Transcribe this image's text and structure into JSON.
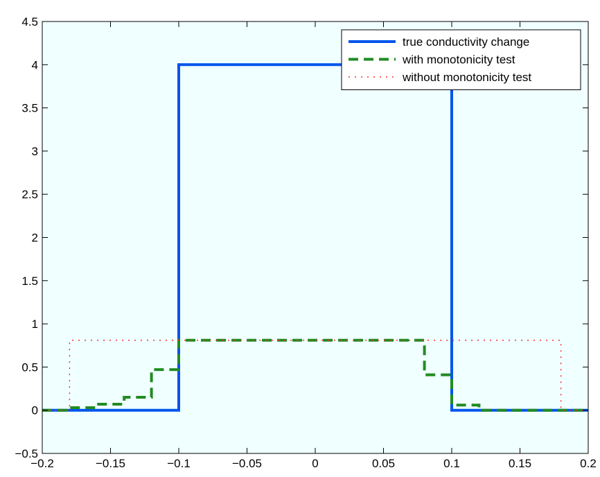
{
  "chart_data": {
    "type": "line",
    "title": "",
    "xlabel": "",
    "ylabel": "",
    "xlim": [
      -0.2,
      0.2
    ],
    "ylim": [
      -0.5,
      4.5
    ],
    "xticks": [
      -0.2,
      -0.15,
      -0.1,
      -0.05,
      0,
      0.05,
      0.1,
      0.15,
      0.2
    ],
    "xtick_labels": [
      "−0.2",
      "−0.15",
      "−0.1",
      "−0.05",
      "0",
      "0.05",
      "0.1",
      "0.15",
      "0.2"
    ],
    "yticks": [
      -0.5,
      0,
      0.5,
      1,
      1.5,
      2,
      2.5,
      3,
      3.5,
      4,
      4.5
    ],
    "ytick_labels": [
      "−0.5",
      "0",
      "0.5",
      "1",
      "1.5",
      "2",
      "2.5",
      "3",
      "3.5",
      "4",
      "4.5"
    ],
    "grid": false,
    "legend_position": "top-right",
    "background_color": "#f0ffff",
    "series": [
      {
        "name": "true conductivity change",
        "color": "#0055ee",
        "style": "solid",
        "x": [
          -0.2,
          -0.1,
          -0.1,
          0.1,
          0.1,
          0.2
        ],
        "y": [
          0,
          0,
          4,
          4,
          0,
          0
        ]
      },
      {
        "name": "with monotonicity test",
        "color": "#228b22",
        "style": "dashed",
        "x": [
          -0.2,
          -0.18,
          -0.18,
          -0.16,
          -0.16,
          -0.14,
          -0.14,
          -0.12,
          -0.12,
          -0.11,
          -0.11,
          -0.1,
          -0.1,
          0.08,
          0.08,
          0.1,
          0.1,
          0.12,
          0.12,
          0.2
        ],
        "y": [
          0,
          0,
          0.03,
          0.03,
          0.07,
          0.07,
          0.15,
          0.15,
          0.47,
          0.47,
          0.47,
          0.47,
          0.81,
          0.81,
          0.41,
          0.41,
          0.06,
          0.06,
          0,
          0
        ]
      },
      {
        "name": "without monotonicity test",
        "color": "#ff2a2a",
        "style": "dotted",
        "x": [
          -0.2,
          -0.18,
          -0.18,
          0.18,
          0.18,
          0.2
        ],
        "y": [
          0,
          0,
          0.81,
          0.81,
          0,
          0
        ]
      }
    ]
  }
}
